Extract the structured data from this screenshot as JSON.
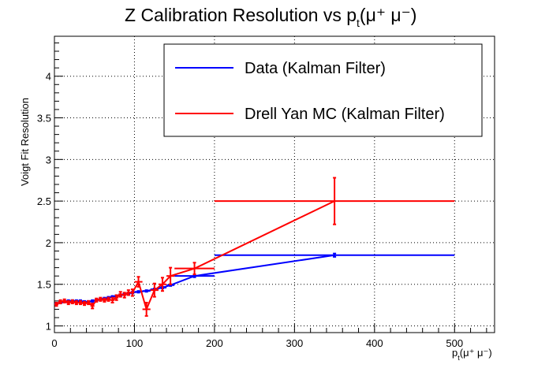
{
  "chart_data": {
    "type": "line",
    "title": "Z Calibration Resolution vs  p",
    "title_sub": "t",
    "title_tail": "(μ⁺ μ⁻)",
    "xlabel": "p",
    "xlabel_sub": "t",
    "xlabel_tail": "(μ⁺ μ⁻)",
    "ylabel": "Voigt Fit Resolution",
    "xlim": [
      0,
      550
    ],
    "ylim": [
      0.92,
      4.48
    ],
    "x_ticks": [
      0,
      100,
      200,
      300,
      400,
      500
    ],
    "y_ticks": [
      1,
      1.5,
      2,
      2.5,
      3,
      3.5,
      4
    ],
    "grid": true,
    "legend_position": "top-right",
    "series": [
      {
        "name": "Data (Kalman Filter)",
        "color": "#0000ff",
        "points": [
          {
            "x": 2.5,
            "y": 1.27,
            "xerr": 2.5,
            "yerr": 0.01
          },
          {
            "x": 7.5,
            "y": 1.28,
            "xerr": 2.5,
            "yerr": 0.01
          },
          {
            "x": 12.5,
            "y": 1.29,
            "xerr": 2.5,
            "yerr": 0.01
          },
          {
            "x": 17.5,
            "y": 1.3,
            "xerr": 2.5,
            "yerr": 0.01
          },
          {
            "x": 22.5,
            "y": 1.3,
            "xerr": 2.5,
            "yerr": 0.01
          },
          {
            "x": 27.5,
            "y": 1.3,
            "xerr": 2.5,
            "yerr": 0.01
          },
          {
            "x": 32.5,
            "y": 1.3,
            "xerr": 2.5,
            "yerr": 0.01
          },
          {
            "x": 37.5,
            "y": 1.29,
            "xerr": 2.5,
            "yerr": 0.01
          },
          {
            "x": 42.5,
            "y": 1.29,
            "xerr": 2.5,
            "yerr": 0.01
          },
          {
            "x": 47.5,
            "y": 1.3,
            "xerr": 2.5,
            "yerr": 0.01
          },
          {
            "x": 52.5,
            "y": 1.31,
            "xerr": 2.5,
            "yerr": 0.01
          },
          {
            "x": 57.5,
            "y": 1.32,
            "xerr": 2.5,
            "yerr": 0.01
          },
          {
            "x": 62.5,
            "y": 1.33,
            "xerr": 2.5,
            "yerr": 0.01
          },
          {
            "x": 67.5,
            "y": 1.34,
            "xerr": 2.5,
            "yerr": 0.01
          },
          {
            "x": 72.5,
            "y": 1.35,
            "xerr": 2.5,
            "yerr": 0.01
          },
          {
            "x": 77.5,
            "y": 1.36,
            "xerr": 2.5,
            "yerr": 0.01
          },
          {
            "x": 82.5,
            "y": 1.37,
            "xerr": 2.5,
            "yerr": 0.01
          },
          {
            "x": 87.5,
            "y": 1.38,
            "xerr": 2.5,
            "yerr": 0.01
          },
          {
            "x": 92.5,
            "y": 1.39,
            "xerr": 2.5,
            "yerr": 0.01
          },
          {
            "x": 97.5,
            "y": 1.4,
            "xerr": 2.5,
            "yerr": 0.01
          },
          {
            "x": 105,
            "y": 1.41,
            "xerr": 5,
            "yerr": 0.01
          },
          {
            "x": 115,
            "y": 1.42,
            "xerr": 5,
            "yerr": 0.01
          },
          {
            "x": 125,
            "y": 1.44,
            "xerr": 5,
            "yerr": 0.01
          },
          {
            "x": 135,
            "y": 1.46,
            "xerr": 5,
            "yerr": 0.01
          },
          {
            "x": 145,
            "y": 1.49,
            "xerr": 5,
            "yerr": 0.01
          },
          {
            "x": 175,
            "y": 1.6,
            "xerr": 25,
            "yerr": 0.015
          },
          {
            "x": 350,
            "y": 1.85,
            "xerr": 150,
            "yerr": 0.02
          }
        ]
      },
      {
        "name": "Drell Yan MC (Kalman Filter)",
        "color": "#ff0000",
        "points": [
          {
            "x": 2.5,
            "y": 1.26,
            "xerr": 2.5,
            "yerr": 0.02
          },
          {
            "x": 7.5,
            "y": 1.29,
            "xerr": 2.5,
            "yerr": 0.02
          },
          {
            "x": 12.5,
            "y": 1.3,
            "xerr": 2.5,
            "yerr": 0.02
          },
          {
            "x": 17.5,
            "y": 1.28,
            "xerr": 2.5,
            "yerr": 0.02
          },
          {
            "x": 22.5,
            "y": 1.29,
            "xerr": 2.5,
            "yerr": 0.02
          },
          {
            "x": 27.5,
            "y": 1.28,
            "xerr": 2.5,
            "yerr": 0.02
          },
          {
            "x": 32.5,
            "y": 1.28,
            "xerr": 2.5,
            "yerr": 0.02
          },
          {
            "x": 37.5,
            "y": 1.27,
            "xerr": 2.5,
            "yerr": 0.02
          },
          {
            "x": 42.5,
            "y": 1.28,
            "xerr": 2.5,
            "yerr": 0.02
          },
          {
            "x": 47.5,
            "y": 1.24,
            "xerr": 2.5,
            "yerr": 0.03
          },
          {
            "x": 52.5,
            "y": 1.31,
            "xerr": 2.5,
            "yerr": 0.02
          },
          {
            "x": 57.5,
            "y": 1.32,
            "xerr": 2.5,
            "yerr": 0.02
          },
          {
            "x": 62.5,
            "y": 1.31,
            "xerr": 2.5,
            "yerr": 0.02
          },
          {
            "x": 67.5,
            "y": 1.32,
            "xerr": 2.5,
            "yerr": 0.02
          },
          {
            "x": 72.5,
            "y": 1.31,
            "xerr": 2.5,
            "yerr": 0.03
          },
          {
            "x": 77.5,
            "y": 1.34,
            "xerr": 2.5,
            "yerr": 0.03
          },
          {
            "x": 82.5,
            "y": 1.38,
            "xerr": 2.5,
            "yerr": 0.03
          },
          {
            "x": 87.5,
            "y": 1.37,
            "xerr": 2.5,
            "yerr": 0.03
          },
          {
            "x": 92.5,
            "y": 1.4,
            "xerr": 2.5,
            "yerr": 0.03
          },
          {
            "x": 97.5,
            "y": 1.4,
            "xerr": 2.5,
            "yerr": 0.04
          },
          {
            "x": 105,
            "y": 1.53,
            "xerr": 5,
            "yerr": 0.06
          },
          {
            "x": 115,
            "y": 1.2,
            "xerr": 5,
            "yerr": 0.08
          },
          {
            "x": 125,
            "y": 1.43,
            "xerr": 5,
            "yerr": 0.08
          },
          {
            "x": 135,
            "y": 1.5,
            "xerr": 5,
            "yerr": 0.08
          },
          {
            "x": 145,
            "y": 1.6,
            "xerr": 5,
            "yerr": 0.1
          },
          {
            "x": 175,
            "y": 1.69,
            "xerr": 25,
            "yerr": 0.07
          },
          {
            "x": 350,
            "y": 2.5,
            "xerr": 150,
            "yerr": 0.28
          }
        ]
      }
    ]
  }
}
